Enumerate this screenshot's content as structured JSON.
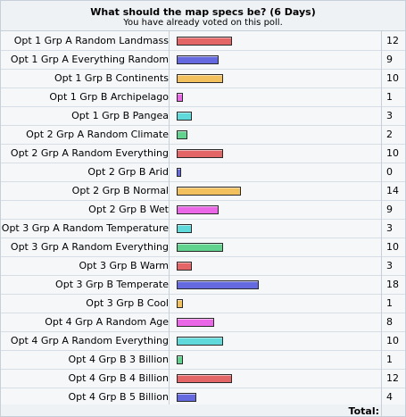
{
  "poll": {
    "title": "What should the map specs be? (6 Days)",
    "status": "You have already voted on this poll.",
    "total_label": "Total:",
    "total_value": ""
  },
  "colors": {
    "red": "#e46566",
    "blue": "#6469e0",
    "orange": "#f2c15e",
    "pink": "#ea68e8",
    "cyan": "#5fd9d9",
    "green": "#62d28f"
  },
  "chart_data": {
    "type": "bar",
    "orientation": "horizontal",
    "xlim": [
      0,
      18
    ],
    "categories": [
      "Opt 1 Grp A Random Landmass",
      "Opt 1 Grp A Everything Random",
      "Opt 1 Grp B Continents",
      "Opt 1 Grp B Archipelago",
      "Opt 1 Grp B Pangea",
      "Opt 2 Grp A Random Climate",
      "Opt 2 Grp A Random Everything",
      "Opt 2 Grp B Arid",
      "Opt 2 Grp B Normal",
      "Opt 2 Grp B Wet",
      "Opt 3 Grp A Random Temperature",
      "Opt 3 Grp A Random Everything",
      "Opt 3 Grp B Warm",
      "Opt 3 Grp B Temperate",
      "Opt 3 Grp B Cool",
      "Opt 4 Grp A Random Age",
      "Opt 4 Grp A Random Everything",
      "Opt 4 Grp B 3 Billion",
      "Opt 4 Grp B 4 Billion",
      "Opt 4 Grp B 5 Billion"
    ],
    "values": [
      12,
      9,
      10,
      1,
      3,
      2,
      10,
      0,
      14,
      9,
      3,
      10,
      3,
      18,
      1,
      8,
      10,
      1,
      12,
      4
    ],
    "bar_colors": [
      "red",
      "blue",
      "orange",
      "pink",
      "cyan",
      "green",
      "red",
      "blue",
      "orange",
      "pink",
      "cyan",
      "green",
      "red",
      "blue",
      "orange",
      "pink",
      "cyan",
      "green",
      "red",
      "blue"
    ]
  }
}
